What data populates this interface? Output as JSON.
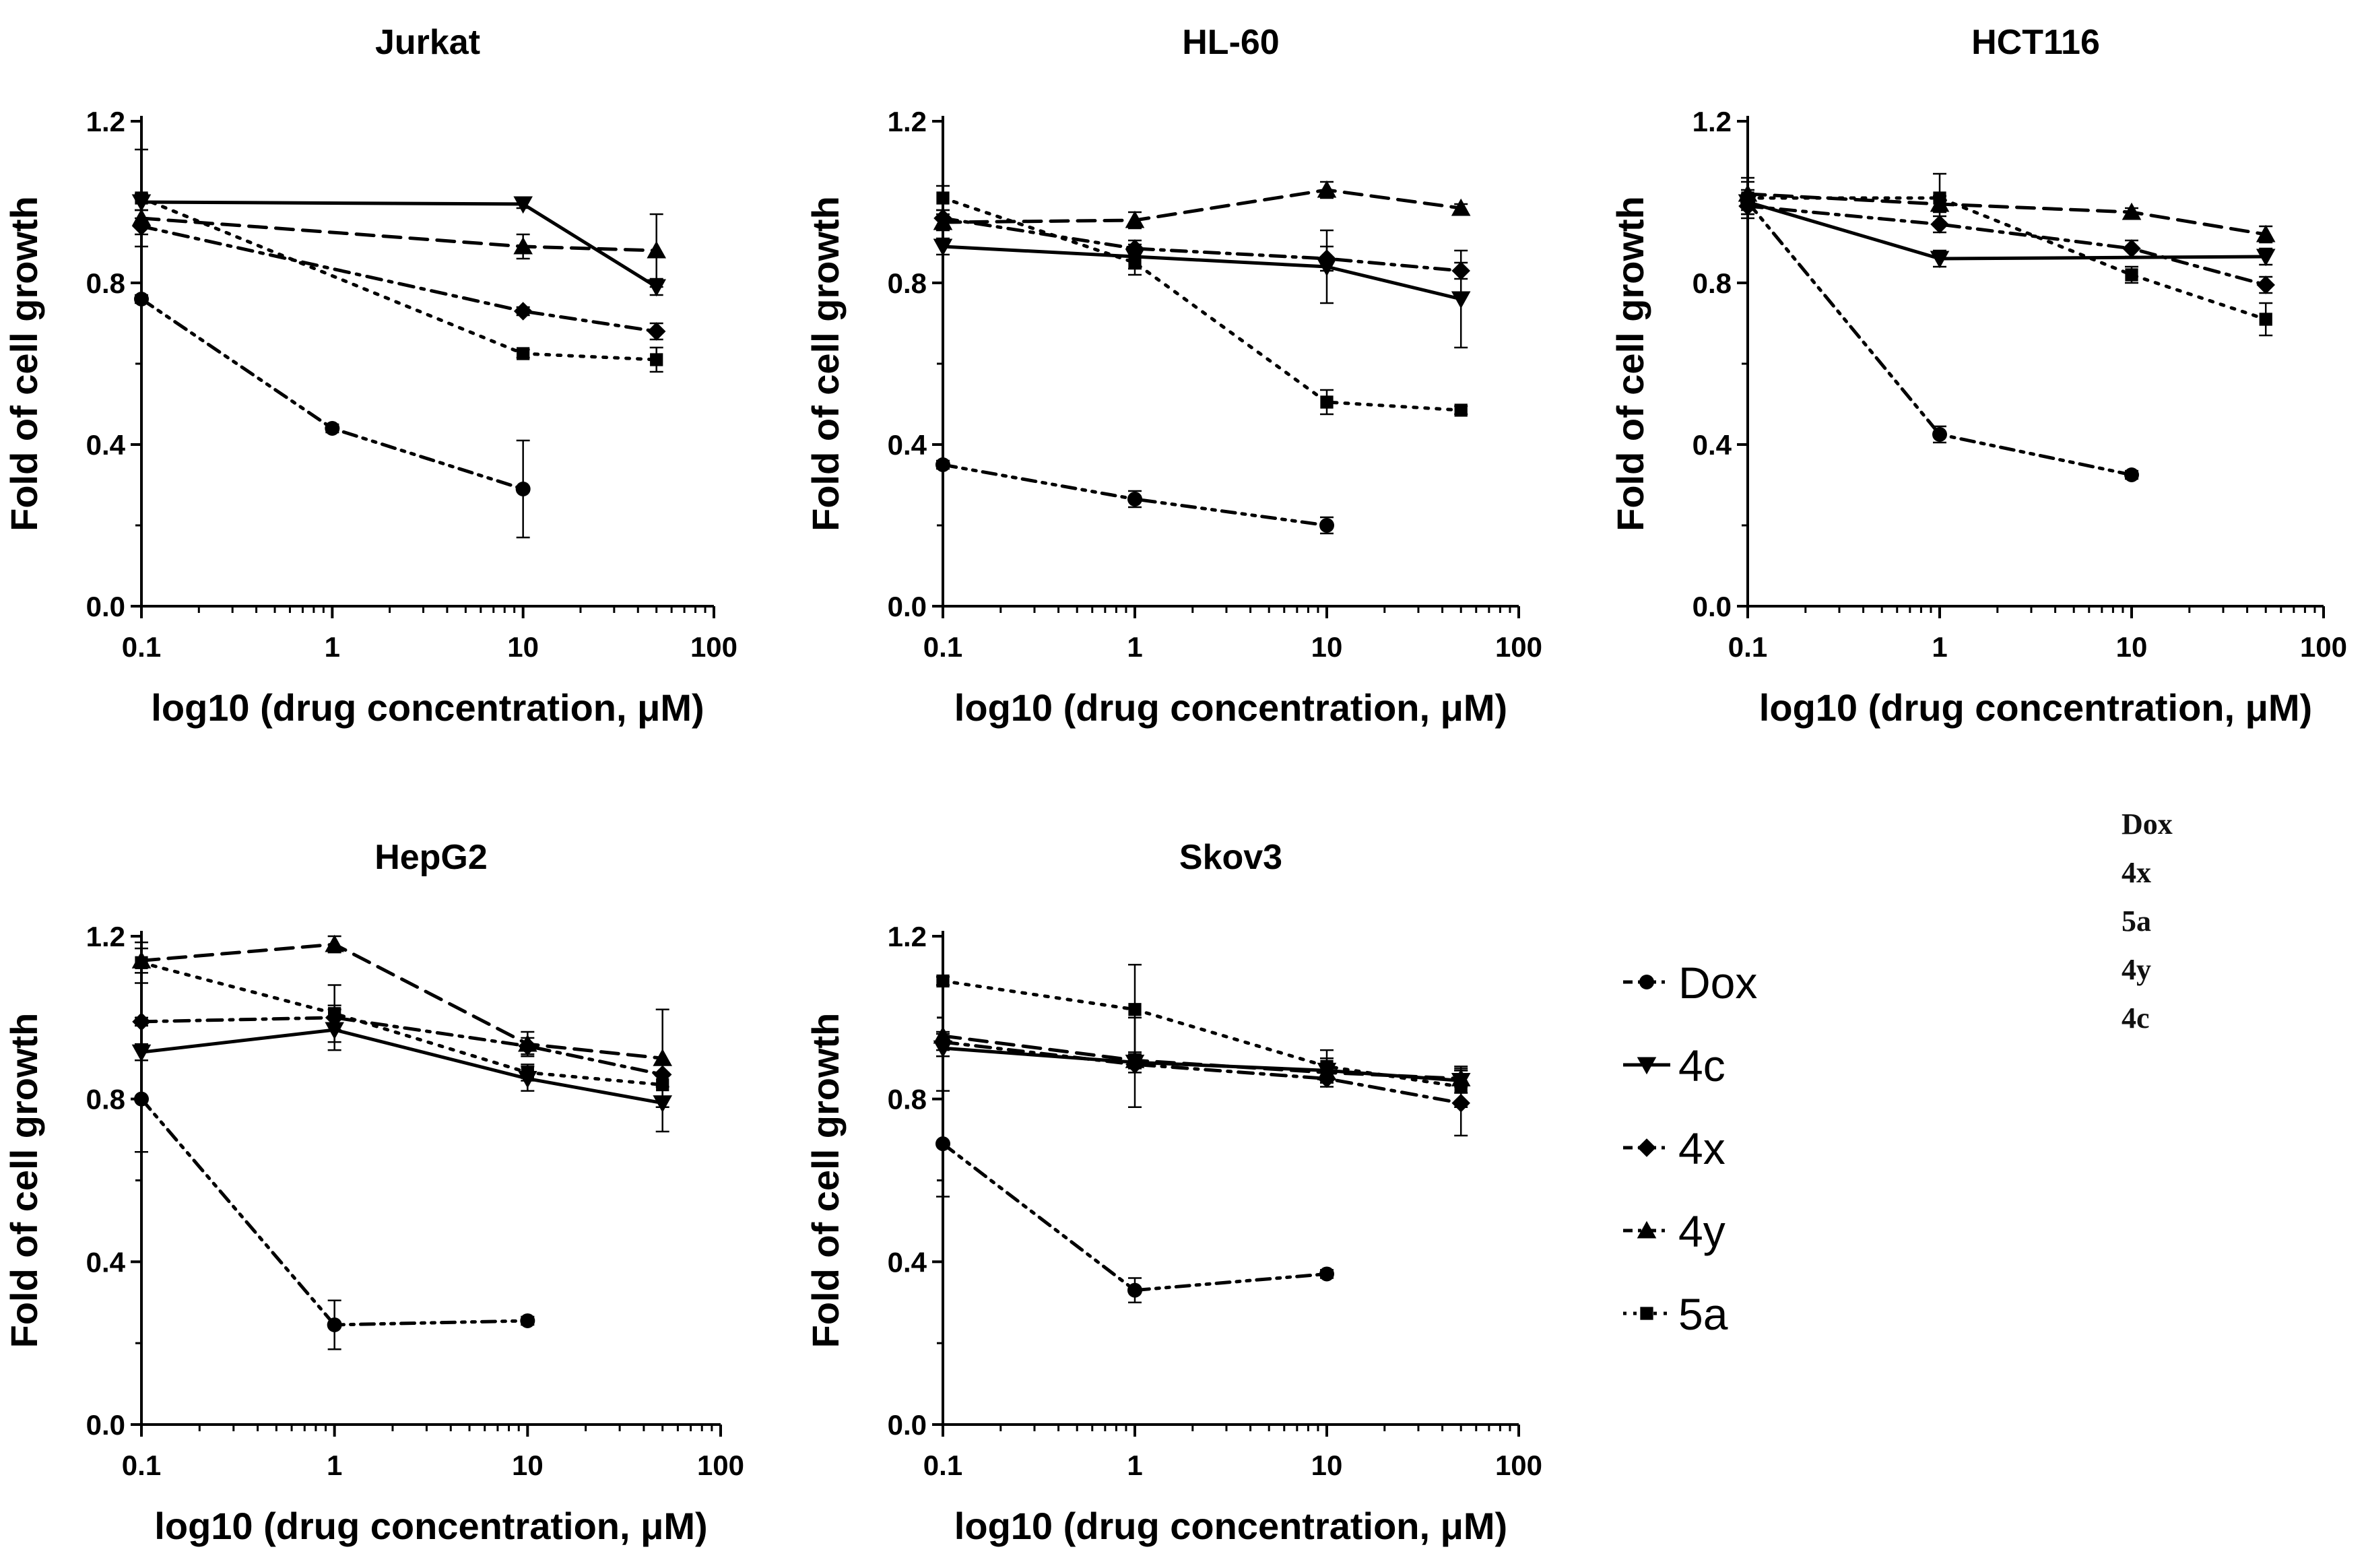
{
  "figure": {
    "legend": [
      {
        "key": "Dox",
        "label": "Dox",
        "marker": "circle",
        "dash": "dashdotdot"
      },
      {
        "key": "4c",
        "label": "4c",
        "marker": "tri-down",
        "dash": "solid"
      },
      {
        "key": "4x",
        "label": "4x",
        "marker": "diamond",
        "dash": "dashdot"
      },
      {
        "key": "4y",
        "label": "4y",
        "marker": "tri-up",
        "dash": "dashed"
      },
      {
        "key": "5a",
        "label": "5a",
        "marker": "square",
        "dash": "dotted"
      }
    ],
    "side_note": [
      "Dox",
      "4x",
      "5a",
      "4y",
      "4c"
    ]
  },
  "chart_data": [
    {
      "type": "line",
      "title": "Jurkat",
      "xlabel": "log10 (drug concentration, μM)",
      "ylabel": "Fold of cell growth",
      "xscale": "log",
      "xlim": [
        0.1,
        100
      ],
      "ylim": [
        0,
        1.2
      ],
      "xticks": [
        0.1,
        1,
        10,
        100
      ],
      "xtick_labels": [
        "0.1",
        "1",
        "10",
        "100"
      ],
      "yticks": [
        0,
        0.4,
        0.8,
        1.2
      ],
      "ytick_labels": [
        "0.0",
        "0.4",
        "0.8",
        "1.2"
      ],
      "series": [
        {
          "name": "Dox",
          "x": [
            0.1,
            1,
            10
          ],
          "y": [
            0.76,
            0.44,
            0.29
          ],
          "err": [
            0.01,
            0.01,
            0.12
          ]
        },
        {
          "name": "4c",
          "x": [
            0.1,
            10,
            50
          ],
          "y": [
            1.0,
            0.995,
            0.79
          ],
          "err": [
            0.02,
            0.01,
            0.02
          ]
        },
        {
          "name": "4x",
          "x": [
            0.1,
            10,
            50
          ],
          "y": [
            0.94,
            0.73,
            0.68
          ],
          "err": [
            0.02,
            0.01,
            0.02
          ]
        },
        {
          "name": "4y",
          "x": [
            0.1,
            10,
            50
          ],
          "y": [
            0.96,
            0.89,
            0.88
          ],
          "err": [
            0.02,
            0.03,
            0.09
          ]
        },
        {
          "name": "5a",
          "x": [
            0.1,
            10,
            50
          ],
          "y": [
            1.01,
            0.625,
            0.61
          ],
          "err": [
            0.12,
            0.01,
            0.03
          ]
        }
      ]
    },
    {
      "type": "line",
      "title": "HL-60",
      "xlabel": "log10 (drug concentration, μM)",
      "ylabel": "Fold of cell growth",
      "xscale": "log",
      "xlim": [
        0.1,
        100
      ],
      "ylim": [
        0,
        1.2
      ],
      "xticks": [
        0.1,
        1,
        10,
        100
      ],
      "xtick_labels": [
        "0.1",
        "1",
        "10",
        "100"
      ],
      "yticks": [
        0,
        0.4,
        0.8,
        1.2
      ],
      "ytick_labels": [
        "0.0",
        "0.4",
        "0.8",
        "1.2"
      ],
      "series": [
        {
          "name": "Dox",
          "x": [
            0.1,
            1,
            10
          ],
          "y": [
            0.35,
            0.265,
            0.2
          ],
          "err": [
            0.01,
            0.02,
            0.02
          ]
        },
        {
          "name": "4c",
          "x": [
            0.1,
            1,
            10,
            50
          ],
          "y": [
            0.89,
            0.865,
            0.84,
            0.76
          ],
          "err": [
            0.02,
            0.03,
            0.09,
            0.12
          ]
        },
        {
          "name": "4x",
          "x": [
            0.1,
            1,
            10,
            50
          ],
          "y": [
            0.96,
            0.885,
            0.86,
            0.83
          ],
          "err": [
            0.02,
            0.02,
            0.03,
            0.02
          ]
        },
        {
          "name": "4y",
          "x": [
            0.1,
            1,
            10,
            50
          ],
          "y": [
            0.95,
            0.955,
            1.03,
            0.985
          ],
          "err": [
            0.02,
            0.02,
            0.02,
            0.01
          ]
        },
        {
          "name": "5a",
          "x": [
            0.1,
            1,
            10,
            50
          ],
          "y": [
            1.01,
            0.85,
            0.505,
            0.485
          ],
          "err": [
            0.03,
            0.03,
            0.03,
            0.01
          ]
        }
      ]
    },
    {
      "type": "line",
      "title": "HCT116",
      "xlabel": "log10 (drug concentration, μM)",
      "ylabel": "Fold of cell growth",
      "xscale": "log",
      "xlim": [
        0.1,
        100
      ],
      "ylim": [
        0,
        1.2
      ],
      "xticks": [
        0.1,
        1,
        10,
        100
      ],
      "xtick_labels": [
        "0.1",
        "1",
        "10",
        "100"
      ],
      "yticks": [
        0,
        0.4,
        0.8,
        1.2
      ],
      "ytick_labels": [
        "0.0",
        "0.4",
        "0.8",
        "1.2"
      ],
      "series": [
        {
          "name": "Dox",
          "x": [
            0.1,
            1,
            10
          ],
          "y": [
            1.0,
            0.425,
            0.325
          ],
          "err": [
            0.03,
            0.02,
            0.01
          ]
        },
        {
          "name": "4c",
          "x": [
            0.1,
            1,
            50
          ],
          "y": [
            1.0,
            0.86,
            0.865
          ],
          "err": [
            0.02,
            0.02,
            0.02
          ]
        },
        {
          "name": "4x",
          "x": [
            0.1,
            1,
            10,
            50
          ],
          "y": [
            0.99,
            0.945,
            0.885,
            0.795
          ],
          "err": [
            0.02,
            0.02,
            0.02,
            0.02
          ]
        },
        {
          "name": "4y",
          "x": [
            0.1,
            1,
            10,
            50
          ],
          "y": [
            1.02,
            0.995,
            0.975,
            0.92
          ],
          "err": [
            0.03,
            0.02,
            0.01,
            0.02
          ]
        },
        {
          "name": "5a",
          "x": [
            0.1,
            1,
            10,
            50
          ],
          "y": [
            1.01,
            1.01,
            0.82,
            0.71
          ],
          "err": [
            0.05,
            0.06,
            0.02,
            0.04
          ]
        }
      ]
    },
    {
      "type": "line",
      "title": "HepG2",
      "xlabel": "log10 (drug concentration, μM)",
      "ylabel": "Fold of cell growth",
      "xscale": "log",
      "xlim": [
        0.1,
        100
      ],
      "ylim": [
        0,
        1.2
      ],
      "xticks": [
        0.1,
        1,
        10,
        100
      ],
      "xtick_labels": [
        "0.1",
        "1",
        "10",
        "100"
      ],
      "yticks": [
        0,
        0.4,
        0.8,
        1.2
      ],
      "ytick_labels": [
        "0.0",
        "0.4",
        "0.8",
        "1.2"
      ],
      "series": [
        {
          "name": "Dox",
          "x": [
            0.1,
            1,
            10
          ],
          "y": [
            0.8,
            0.245,
            0.255
          ],
          "err": [
            0.13,
            0.06,
            0.01
          ]
        },
        {
          "name": "4c",
          "x": [
            0.1,
            1,
            10,
            50
          ],
          "y": [
            0.915,
            0.97,
            0.85,
            0.79
          ],
          "err": [
            0.02,
            0.05,
            0.03,
            0.07
          ]
        },
        {
          "name": "4x",
          "x": [
            0.1,
            1,
            10,
            50
          ],
          "y": [
            0.99,
            1.0,
            0.93,
            0.86
          ],
          "err": [
            0.01,
            0.03,
            0.02,
            0.03
          ]
        },
        {
          "name": "4y",
          "x": [
            0.1,
            1,
            10,
            50
          ],
          "y": [
            1.14,
            1.18,
            0.935,
            0.9
          ],
          "err": [
            0.03,
            0.02,
            0.03,
            0.12
          ]
        },
        {
          "name": "5a",
          "x": [
            0.1,
            1,
            10,
            50
          ],
          "y": [
            1.135,
            1.01,
            0.865,
            0.835
          ],
          "err": [
            0.05,
            0.07,
            0.02,
            0.03
          ]
        }
      ]
    },
    {
      "type": "line",
      "title": "Skov3",
      "xlabel": "log10 (drug concentration, μM)",
      "ylabel": "Fold of cell growth",
      "xscale": "log",
      "xlim": [
        0.1,
        100
      ],
      "ylim": [
        0,
        1.2
      ],
      "xticks": [
        0.1,
        1,
        10,
        100
      ],
      "xtick_labels": [
        "0.1",
        "1",
        "10",
        "100"
      ],
      "yticks": [
        0,
        0.4,
        0.8,
        1.2
      ],
      "ytick_labels": [
        "0.0",
        "0.4",
        "0.8",
        "1.2"
      ],
      "series": [
        {
          "name": "Dox",
          "x": [
            0.1,
            1,
            10
          ],
          "y": [
            0.69,
            0.33,
            0.37
          ],
          "err": [
            0.13,
            0.03,
            0.01
          ]
        },
        {
          "name": "4c",
          "x": [
            0.1,
            1,
            10,
            50
          ],
          "y": [
            0.925,
            0.89,
            0.87,
            0.845
          ],
          "err": [
            0.02,
            0.11,
            0.03,
            0.03
          ]
        },
        {
          "name": "4x",
          "x": [
            0.1,
            1,
            10,
            50
          ],
          "y": [
            0.94,
            0.885,
            0.85,
            0.79
          ],
          "err": [
            0.02,
            0.02,
            0.02,
            0.08
          ]
        },
        {
          "name": "4y",
          "x": [
            0.1,
            1,
            10,
            50
          ],
          "y": [
            0.955,
            0.895,
            0.865,
            0.85
          ],
          "err": [
            0.01,
            0.02,
            0.02,
            0.02
          ]
        },
        {
          "name": "5a",
          "x": [
            0.1,
            1,
            10,
            50
          ],
          "y": [
            1.09,
            1.02,
            0.88,
            0.83
          ],
          "err": [
            0.01,
            0.11,
            0.04,
            0.05
          ]
        }
      ]
    }
  ]
}
